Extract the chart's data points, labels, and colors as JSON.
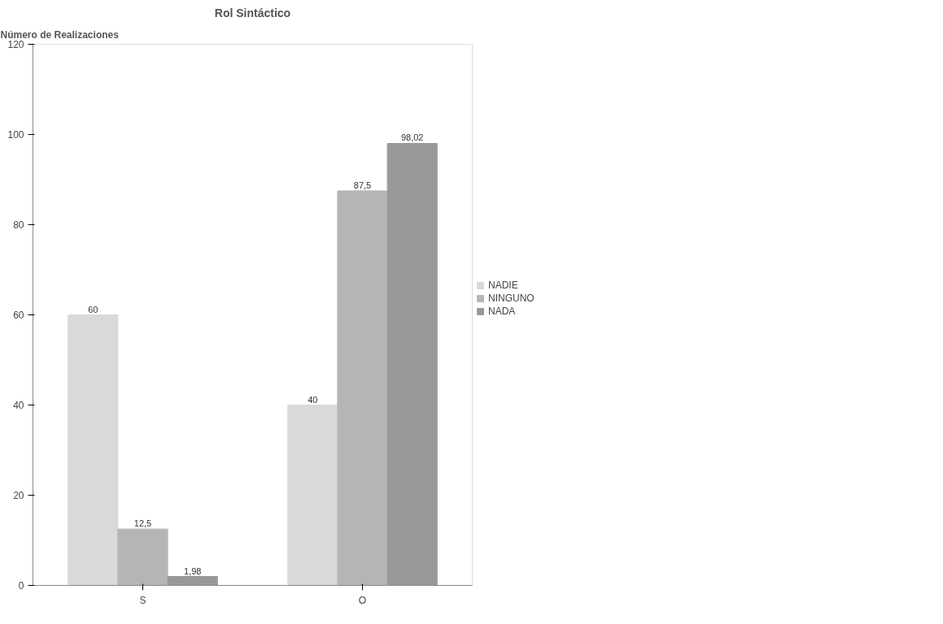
{
  "chart_data": {
    "type": "bar",
    "title": "Rol Sintáctico",
    "ylabel": "Número de Realizaciones",
    "categories": [
      "S",
      "O"
    ],
    "series": [
      {
        "name": "NADIE",
        "color": "#d9d9d9",
        "values": [
          60,
          40
        ],
        "value_labels": [
          "60",
          "40"
        ]
      },
      {
        "name": "NINGUNO",
        "color": "#b5b5b5",
        "values": [
          12.5,
          87.5
        ],
        "value_labels": [
          "12,5",
          "87,5"
        ]
      },
      {
        "name": "NADA",
        "color": "#999999",
        "values": [
          1.98,
          98.02
        ],
        "value_labels": [
          "1,98",
          "98,02"
        ]
      }
    ],
    "ylim": [
      0,
      120
    ],
    "yticks": [
      0,
      20,
      40,
      60,
      80,
      100,
      120
    ],
    "grid": false,
    "legend": "right"
  }
}
